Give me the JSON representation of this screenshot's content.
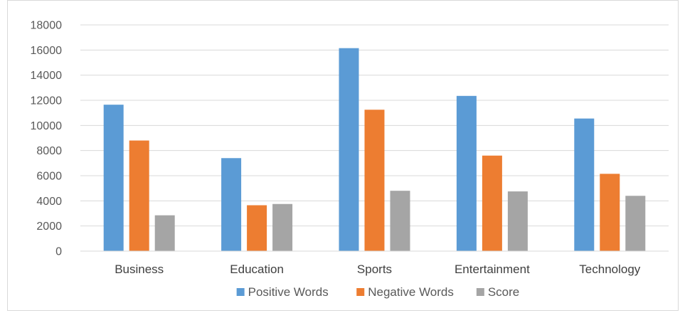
{
  "chart_data": {
    "type": "bar",
    "categories": [
      "Business",
      "Education",
      "Sports",
      "Entertainment",
      "Technology"
    ],
    "series": [
      {
        "name": "Positive Words",
        "color": "#5b9bd5",
        "values": [
          11650,
          7400,
          16150,
          12350,
          10550
        ]
      },
      {
        "name": "Negative Words",
        "color": "#ed7d31",
        "values": [
          8800,
          3650,
          11250,
          7600,
          6150
        ]
      },
      {
        "name": "Score",
        "color": "#a5a5a5",
        "values": [
          2850,
          3750,
          4800,
          4750,
          4400
        ]
      }
    ],
    "yticks": [
      "0",
      "2000",
      "4000",
      "6000",
      "8000",
      "10000",
      "12000",
      "14000",
      "16000",
      "18000"
    ],
    "ylim": [
      0,
      18000
    ],
    "grid": true,
    "legend": "bottom"
  }
}
